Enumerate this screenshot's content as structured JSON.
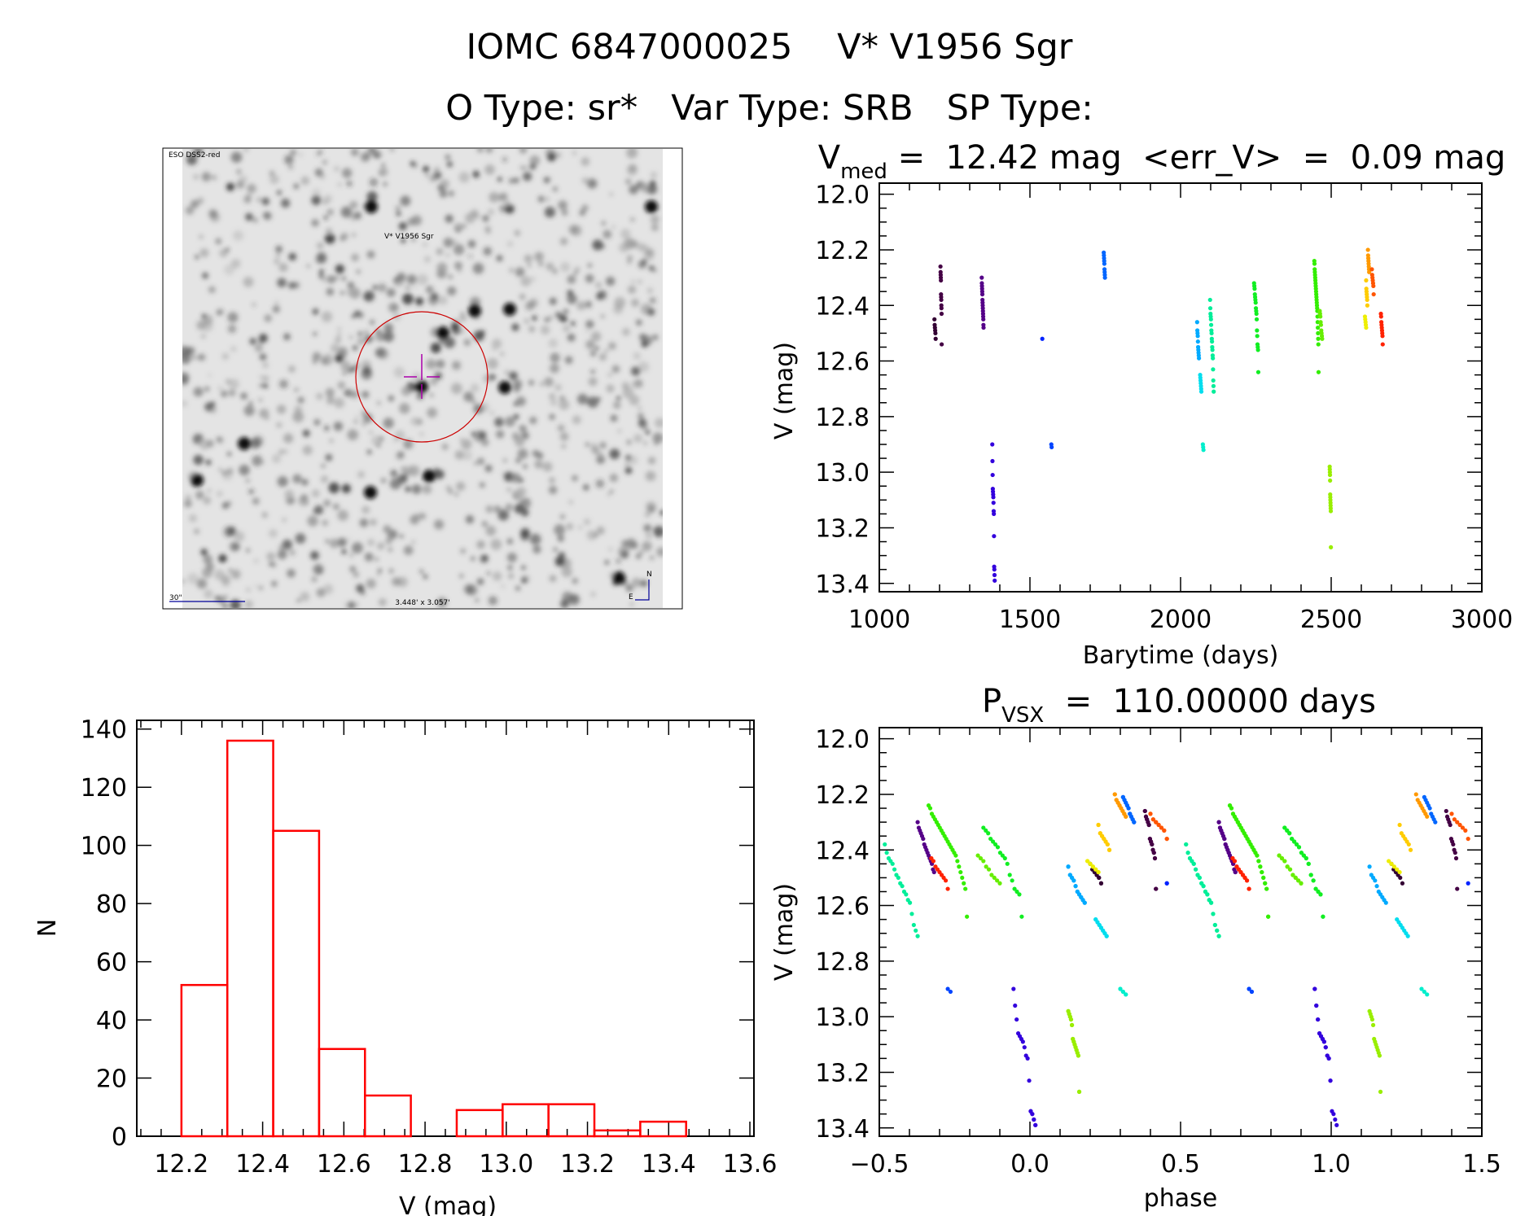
{
  "header": {
    "line1": "IOMC 6847000025    V* V1956 Sgr",
    "line2": "O Type: sr*   Var Type: SRB   SP Type:"
  },
  "finder": {
    "survey_label": "ESO DSS2-red",
    "object_label": "V* V1956 Sgr",
    "scale_label": "30\"",
    "fov_label": "3.448' x 3.057'",
    "north_label": "N",
    "east_label": "E",
    "label_color": "#000099",
    "marker_color": "#cc0000",
    "cross_color": "#aa00aa"
  },
  "chart_data": [
    {
      "id": "light_curve",
      "type": "scatter",
      "title_main": "V",
      "title_sub": "med",
      "title_rest": " =  12.42 mag  <err_V>  =  0.09 mag",
      "xlabel": "Barytime (days)",
      "ylabel": "V (mag)",
      "xlim": [
        1000,
        3000
      ],
      "ylim": [
        11.96,
        13.43
      ],
      "y_inverted": true,
      "xticks": [
        "1000",
        "1500",
        "2000",
        "2500",
        "3000"
      ],
      "yticks": [
        "12.0",
        "12.2",
        "12.4",
        "12.6",
        "12.8",
        "13.0",
        "13.2",
        "13.4"
      ],
      "grid": false,
      "clusters": [
        {
          "t": [
            1183,
            1187
          ],
          "color": "#330033",
          "mags": [
            12.45,
            12.47,
            12.48,
            12.49,
            12.5,
            12.52
          ]
        },
        {
          "t": [
            1203,
            1207
          ],
          "color": "#440044",
          "mags": [
            12.26,
            12.28,
            12.29,
            12.3,
            12.31,
            12.36,
            12.37,
            12.38,
            12.4,
            12.41,
            12.43,
            12.54
          ]
        },
        {
          "t": [
            1340,
            1346
          ],
          "color": "#550088",
          "mags": [
            12.3,
            12.32,
            12.33,
            12.34,
            12.35,
            12.36,
            12.38,
            12.39,
            12.4,
            12.41,
            12.42,
            12.43,
            12.44,
            12.45,
            12.47,
            12.48
          ]
        },
        {
          "t": [
            1375,
            1383
          ],
          "color": "#3300dd",
          "mags": [
            12.9,
            12.96,
            13.01,
            13.06,
            13.07,
            13.08,
            13.09,
            13.11,
            13.14,
            13.15,
            13.23,
            13.34,
            13.35,
            13.37,
            13.39
          ]
        },
        {
          "t": [
            1541,
            1541
          ],
          "color": "#0022ff",
          "mags": [
            12.52
          ]
        },
        {
          "t": [
            1571,
            1572
          ],
          "color": "#0044ff",
          "mags": [
            12.9,
            12.91
          ]
        },
        {
          "t": [
            1745,
            1749
          ],
          "color": "#0066ff",
          "mags": [
            12.21,
            12.22,
            12.23,
            12.24,
            12.25,
            12.27,
            12.28,
            12.29,
            12.3
          ]
        },
        {
          "t": [
            2055,
            2061
          ],
          "color": "#00aaff",
          "mags": [
            12.46,
            12.49,
            12.5,
            12.51,
            12.53,
            12.55,
            12.56,
            12.57,
            12.58,
            12.59
          ]
        },
        {
          "t": [
            2065,
            2069
          ],
          "color": "#00ddee",
          "mags": [
            12.65,
            12.66,
            12.67,
            12.68,
            12.69,
            12.7,
            12.71
          ]
        },
        {
          "t": [
            2074,
            2076
          ],
          "color": "#00eecc",
          "mags": [
            12.9,
            12.91,
            12.92
          ]
        },
        {
          "t": [
            2098,
            2110
          ],
          "color": "#00ee99",
          "mags": [
            12.38,
            12.41,
            12.43,
            12.44,
            12.45,
            12.47,
            12.49,
            12.5,
            12.52,
            12.53,
            12.55,
            12.56,
            12.58,
            12.59,
            12.63,
            12.67,
            12.69,
            12.71
          ]
        },
        {
          "t": [
            2244,
            2258
          ],
          "color": "#11ee22",
          "mags": [
            12.32,
            12.33,
            12.34,
            12.36,
            12.37,
            12.38,
            12.39,
            12.41,
            12.42,
            12.43,
            12.45,
            12.49,
            12.51,
            12.54,
            12.55,
            12.56,
            12.64
          ]
        },
        {
          "t": [
            2444,
            2458
          ],
          "color": "#33ee00",
          "mags": [
            12.24,
            12.25,
            12.27,
            12.28,
            12.29,
            12.3,
            12.31,
            12.32,
            12.33,
            12.34,
            12.35,
            12.36,
            12.37,
            12.38,
            12.39,
            12.4,
            12.41,
            12.42,
            12.44,
            12.46,
            12.48,
            12.5,
            12.52,
            12.54,
            12.64
          ]
        },
        {
          "t": [
            2462,
            2470
          ],
          "color": "#66ee00",
          "mags": [
            12.42,
            12.43,
            12.44,
            12.46,
            12.47,
            12.49,
            12.5,
            12.51,
            12.52
          ]
        },
        {
          "t": [
            2495,
            2499
          ],
          "color": "#99ee00",
          "mags": [
            12.98,
            12.99,
            13.0,
            13.01,
            13.03,
            13.08,
            13.09,
            13.1,
            13.11,
            13.12,
            13.13,
            13.14,
            13.27
          ]
        },
        {
          "t": [
            2612,
            2616
          ],
          "color": "#eeee00",
          "mags": [
            12.44,
            12.45,
            12.46,
            12.47,
            12.48
          ]
        },
        {
          "t": [
            2616,
            2620
          ],
          "color": "#ffcc00",
          "mags": [
            12.31,
            12.34,
            12.35,
            12.36,
            12.37,
            12.38,
            12.4
          ]
        },
        {
          "t": [
            2622,
            2626
          ],
          "color": "#ff9900",
          "mags": [
            12.2,
            12.22,
            12.23,
            12.24,
            12.25,
            12.26,
            12.27,
            12.28
          ]
        },
        {
          "t": [
            2635,
            2641
          ],
          "color": "#ff5500",
          "mags": [
            12.27,
            12.29,
            12.3,
            12.31,
            12.32,
            12.33,
            12.36
          ]
        },
        {
          "t": [
            2665,
            2671
          ],
          "color": "#ff2200",
          "mags": [
            12.43,
            12.44,
            12.46,
            12.47,
            12.48,
            12.49,
            12.5,
            12.51,
            12.54
          ]
        }
      ]
    },
    {
      "id": "phase_curve",
      "type": "scatter",
      "title_main": "P",
      "title_sub": "VSX",
      "title_rest": "  =  110.00000 days",
      "period_days": 110.0,
      "xlabel": "phase",
      "ylabel": "V (mag)",
      "xlim": [
        -0.5,
        1.5
      ],
      "ylim": [
        11.96,
        13.43
      ],
      "y_inverted": true,
      "xticks": [
        "−0.5",
        "0.0",
        "0.5",
        "1.0",
        "1.5"
      ],
      "yticks": [
        "12.0",
        "12.2",
        "12.4",
        "12.6",
        "12.8",
        "13.0",
        "13.2",
        "13.4"
      ],
      "grid": false
    },
    {
      "id": "histogram",
      "type": "bar",
      "xlabel": "V (mag)",
      "ylabel": "N",
      "xlim": [
        12.09,
        13.61
      ],
      "ylim": [
        0,
        143
      ],
      "bin_start": 12.2,
      "bin_width": 0.113,
      "values": [
        52,
        136,
        105,
        30,
        14,
        0,
        9,
        11,
        11,
        2,
        5
      ],
      "bar_color": "#ff0000",
      "xticks": [
        "12.2",
        "12.4",
        "12.6",
        "12.8",
        "13.0",
        "13.2",
        "13.4",
        "13.6"
      ],
      "yticks": [
        "0",
        "20",
        "40",
        "60",
        "80",
        "100",
        "120",
        "140"
      ],
      "grid": false
    }
  ]
}
